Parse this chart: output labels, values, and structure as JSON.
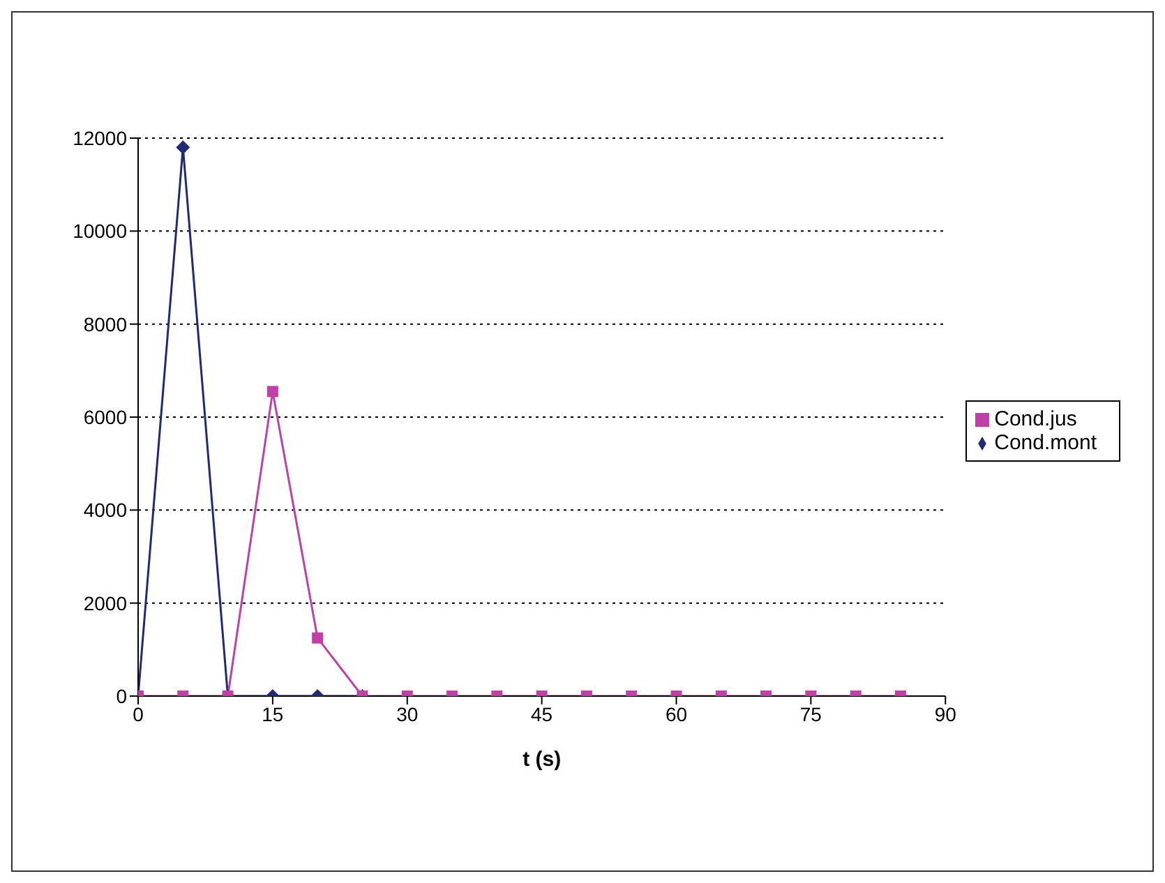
{
  "chart_data": {
    "type": "line",
    "xlabel": "t (s)",
    "xlim": [
      0,
      90
    ],
    "xticks": [
      0,
      15,
      30,
      45,
      60,
      75,
      90
    ],
    "ylim": [
      0,
      12000
    ],
    "yticks": [
      0,
      2000,
      4000,
      6000,
      8000,
      10000,
      12000
    ],
    "grid": "y",
    "legend": "right",
    "series": [
      {
        "name": "Cond.mont",
        "color": "#1f2a78",
        "marker": "diamond",
        "x": [
          0,
          5,
          10,
          15,
          20,
          25
        ],
        "values": [
          0,
          11800,
          0,
          0,
          0,
          0
        ]
      },
      {
        "name": "Cond.jus",
        "color": "#c040a8",
        "marker": "square",
        "x": [
          0,
          5,
          10,
          15,
          20,
          25,
          30,
          35,
          40,
          45,
          50,
          55,
          60,
          65,
          70,
          75,
          80,
          85
        ],
        "values": [
          0,
          0,
          0,
          6550,
          1250,
          0,
          0,
          0,
          0,
          0,
          0,
          0,
          0,
          0,
          0,
          0,
          0,
          0
        ]
      }
    ]
  }
}
